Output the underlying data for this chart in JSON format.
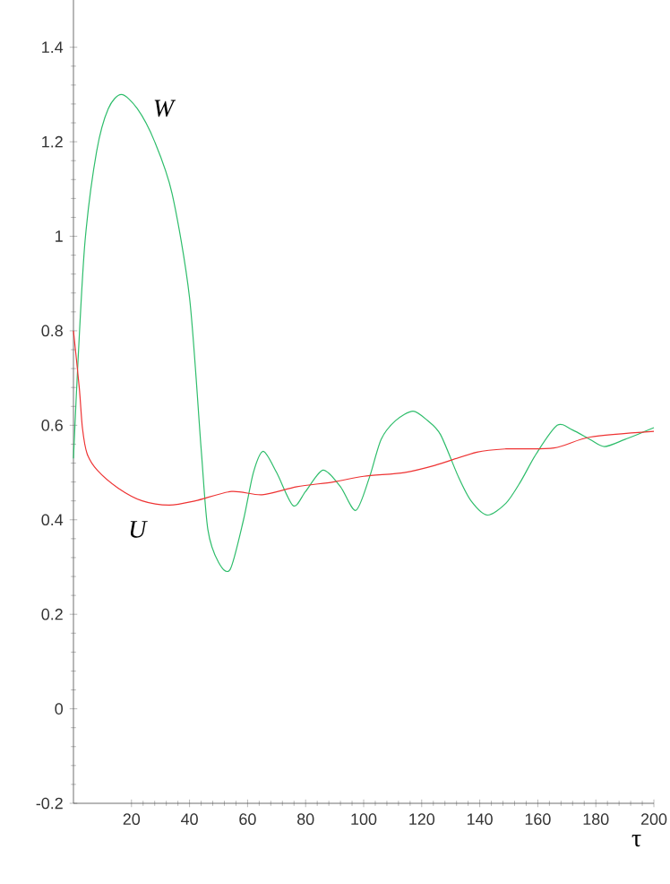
{
  "chart_data": {
    "type": "line",
    "xlabel": "τ",
    "xlim": [
      0,
      200
    ],
    "xticks": [
      20,
      40,
      60,
      80,
      100,
      120,
      140,
      160,
      180,
      200
    ],
    "ylim": [
      -0.2,
      1.5
    ],
    "yticks": [
      -0.2,
      0,
      0.2,
      0.4,
      0.6,
      0.8,
      1,
      1.2,
      1.4
    ],
    "grid": false,
    "legend": false,
    "marker": "none",
    "line_style": "solid",
    "series": [
      {
        "color": "#2ebd6b",
        "x": [
          0,
          1.6,
          4,
          8,
          12,
          16.5,
          22,
          28,
          34,
          40,
          44,
          46.3,
          50,
          54,
          58.6,
          62,
          65.4,
          70,
          75.7,
          80,
          86,
          92,
          97.3,
          102,
          106,
          111,
          117,
          122,
          126.5,
          132.7,
          137,
          142.6,
          149,
          154,
          159.5,
          166.7,
          172,
          178,
          183,
          190,
          200
        ],
        "values": [
          0.53,
          0.74,
          0.99,
          1.18,
          1.27,
          1.3,
          1.27,
          1.2,
          1.09,
          0.87,
          0.55,
          0.38,
          0.31,
          0.295,
          0.4,
          0.5,
          0.545,
          0.5,
          0.43,
          0.46,
          0.505,
          0.47,
          0.42,
          0.49,
          0.57,
          0.61,
          0.63,
          0.61,
          0.58,
          0.49,
          0.44,
          0.41,
          0.435,
          0.48,
          0.54,
          0.6,
          0.59,
          0.57,
          0.555,
          0.57,
          0.595
        ]
      },
      {
        "color": "#ee3333",
        "x": [
          0,
          2,
          3.1,
          4.7,
          8.2,
          15.4,
          23.7,
          33,
          42,
          54.5,
          65,
          77,
          89.5,
          100,
          114,
          124.5,
          139,
          149,
          165.6,
          178,
          200
        ],
        "values": [
          0.8,
          0.68,
          0.594,
          0.54,
          0.505,
          0.467,
          0.44,
          0.431,
          0.44,
          0.46,
          0.453,
          0.47,
          0.48,
          0.492,
          0.5,
          0.515,
          0.543,
          0.55,
          0.552,
          0.575,
          0.587
        ]
      }
    ],
    "annotations": [
      "W",
      "U"
    ]
  }
}
